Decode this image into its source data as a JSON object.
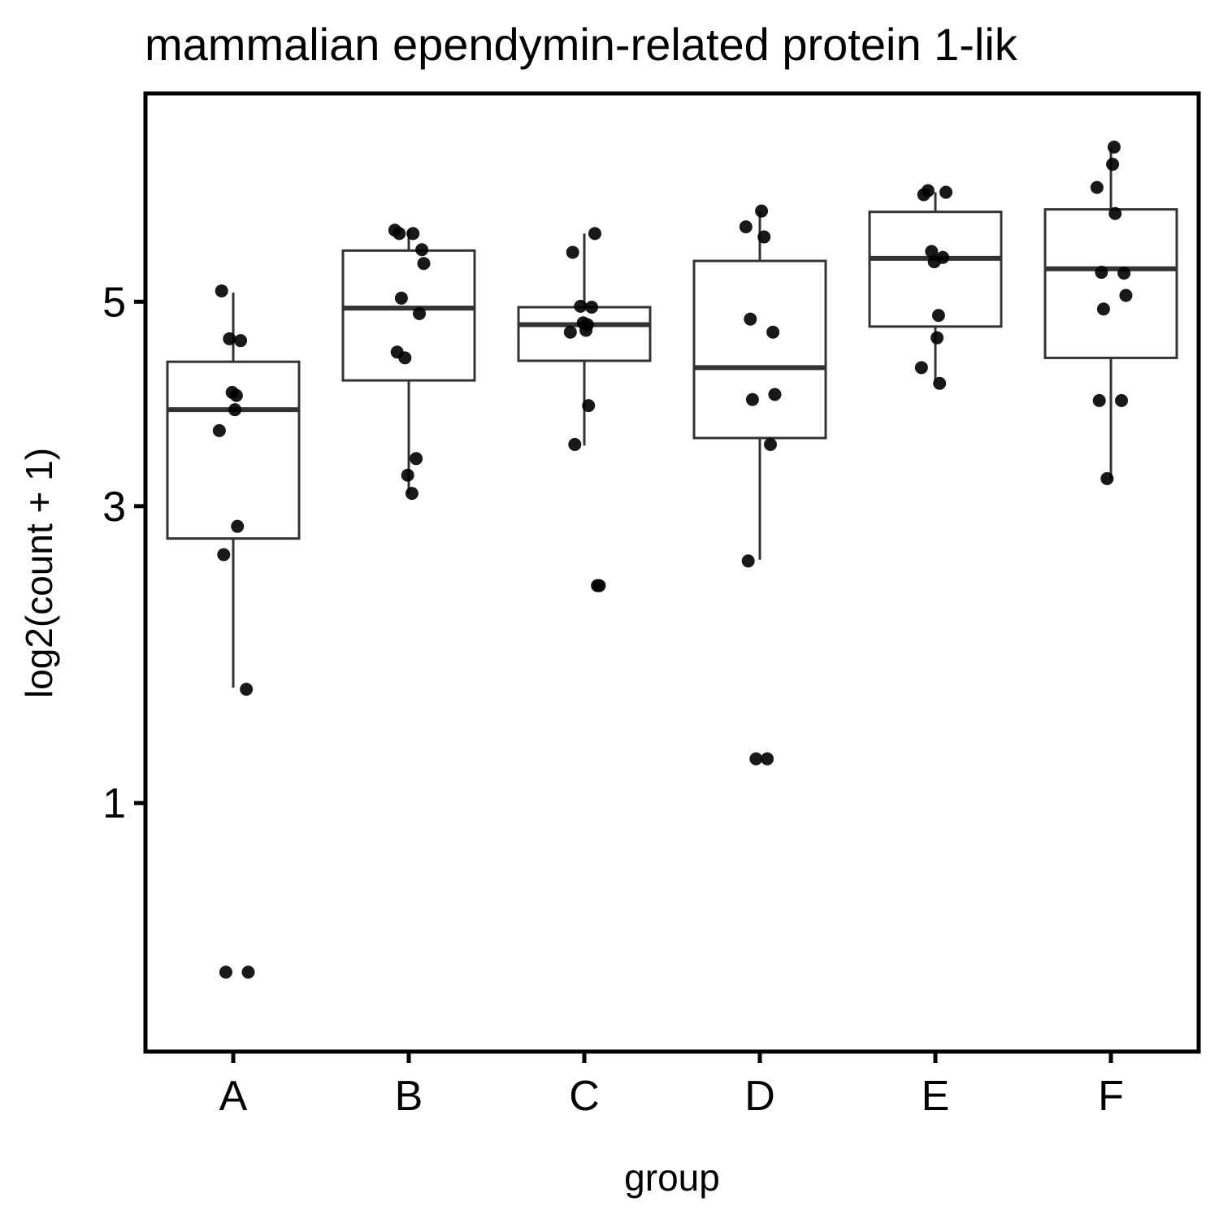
{
  "chart_data": {
    "type": "boxplot",
    "title": "mammalian ependymin-related protein 1-lik",
    "xlabel": "group",
    "ylabel": "log2(count + 1)",
    "y_scale": "sqrt",
    "ylim": [
      0.15,
      7.56
    ],
    "y_ticks": [
      1,
      3,
      5
    ],
    "grid": false,
    "categories": [
      "A",
      "B",
      "C",
      "D",
      "E",
      "F"
    ],
    "boxes": [
      {
        "group": "A",
        "whisker_low": 1.65,
        "q1": 2.73,
        "median": 3.88,
        "q3": 4.36,
        "whisker_high": 5.1
      },
      {
        "group": "B",
        "whisker_low": 3.11,
        "q1": 4.17,
        "median": 4.93,
        "q3": 5.58,
        "whisker_high": 5.82
      },
      {
        "group": "C",
        "whisker_low": 3.54,
        "q1": 4.37,
        "median": 4.75,
        "q3": 4.94,
        "whisker_high": 5.78
      },
      {
        "group": "D",
        "whisker_low": 2.56,
        "q1": 3.61,
        "median": 4.3,
        "q3": 5.46,
        "whisker_high": 6.05
      },
      {
        "group": "E",
        "whisker_low": 4.16,
        "q1": 4.73,
        "median": 5.49,
        "q3": 6.04,
        "whisker_high": 6.28
      },
      {
        "group": "F",
        "whisker_low": 3.23,
        "q1": 4.4,
        "median": 5.37,
        "q3": 6.07,
        "whisker_high": 6.83
      }
    ],
    "points": [
      {
        "group": "A",
        "values": [
          5.12,
          4.6,
          4.58,
          4.05,
          4.02,
          3.88,
          3.68,
          2.83,
          2.6,
          1.64,
          0.34,
          0.34
        ]
      },
      {
        "group": "B",
        "values": [
          5.82,
          5.78,
          5.78,
          5.59,
          5.43,
          5.04,
          4.87,
          4.46,
          4.4,
          3.42,
          3.27,
          3.11
        ]
      },
      {
        "group": "C",
        "values": [
          5.78,
          5.56,
          4.95,
          4.94,
          4.77,
          4.75,
          4.69,
          4.67,
          3.92,
          3.55,
          2.36,
          2.36
        ]
      },
      {
        "group": "D",
        "values": [
          6.05,
          5.86,
          5.74,
          4.81,
          4.67,
          4.03,
          3.98,
          3.55,
          2.55,
          1.23,
          1.23
        ]
      },
      {
        "group": "E",
        "values": [
          6.3,
          6.28,
          6.25,
          5.57,
          5.5,
          5.45,
          4.85,
          4.61,
          4.3,
          4.14
        ]
      },
      {
        "group": "F",
        "values": [
          6.85,
          6.63,
          6.34,
          6.02,
          5.33,
          5.32,
          5.07,
          4.92,
          3.97,
          3.97,
          3.24
        ]
      }
    ]
  }
}
